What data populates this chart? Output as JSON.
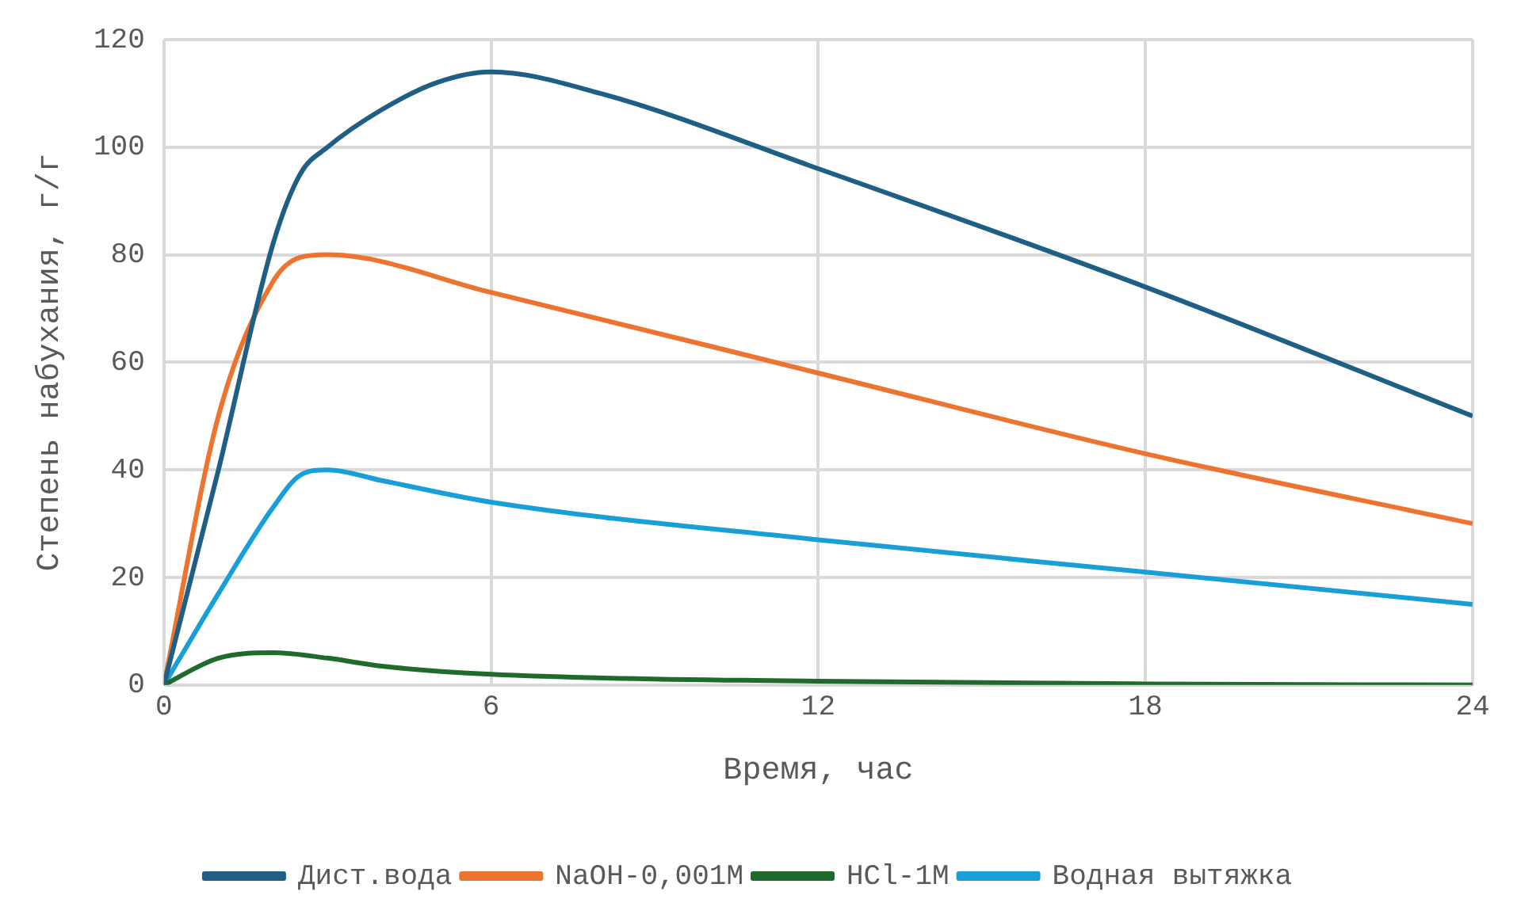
{
  "chart_data": {
    "type": "line",
    "xlabel": "Время, час",
    "ylabel": "Степень набухания, г/г",
    "xlim": [
      0,
      24
    ],
    "xticks": [
      0,
      6,
      12,
      18,
      24
    ],
    "ylim": [
      0,
      120
    ],
    "yticks": [
      0,
      20,
      40,
      60,
      80,
      100,
      120
    ],
    "grid": true,
    "legend": "bottom",
    "marker": "none",
    "line_style": "solid",
    "series": [
      {
        "name": "Дист.вода",
        "color": "#1f5f85",
        "x": [
          0,
          1,
          2,
          2.5,
          3,
          4,
          5,
          6,
          8,
          12,
          18,
          24
        ],
        "values": [
          0,
          40,
          82,
          95,
          100,
          107,
          112,
          114,
          110,
          96,
          74,
          50
        ]
      },
      {
        "name": "NaOH-0,001M",
        "color": "#ed7430",
        "x": [
          0,
          1,
          2,
          2.5,
          3,
          6,
          12,
          18,
          24
        ],
        "values": [
          0,
          50,
          75,
          79.5,
          80,
          73,
          58,
          43,
          30
        ]
      },
      {
        "name": "HCl-1M",
        "color": "#1e6b2c",
        "x": [
          0,
          1,
          2,
          3,
          4,
          6,
          12,
          18,
          24
        ],
        "values": [
          0,
          5,
          6,
          5,
          3.5,
          2,
          0.7,
          0.2,
          0
        ]
      },
      {
        "name": "Водная вытяжка",
        "color": "#189fd8",
        "x": [
          0,
          1,
          2,
          2.5,
          3,
          4,
          6,
          12,
          18,
          24
        ],
        "values": [
          0,
          17,
          33,
          39,
          40,
          38,
          34,
          27,
          21,
          15
        ]
      }
    ]
  }
}
